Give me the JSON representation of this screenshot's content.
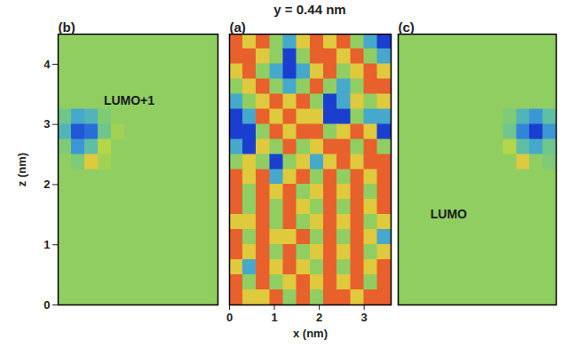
{
  "title": "y = 0.44 nm",
  "chart_data": [
    {
      "type": "heatmap",
      "label": "(b)",
      "ylabel": "z (nm)",
      "tick_labels": "y",
      "xlim": [
        0,
        3.6
      ],
      "ylim": [
        0,
        4.5
      ],
      "yticks": [
        0,
        1,
        2,
        3,
        4
      ],
      "value_range": [
        0,
        1
      ],
      "x_edges": [
        0,
        0.3,
        0.6,
        0.9,
        1.2,
        1.5,
        1.8,
        2.1,
        2.4,
        2.7,
        3.0,
        3.3,
        3.6
      ],
      "z_edges": [
        4.5,
        4.25,
        4,
        3.75,
        3.5,
        3.25,
        3,
        2.75,
        2.5,
        2.25,
        2,
        1.75,
        1.5,
        1.25,
        1,
        0.75,
        0.5,
        0.25,
        0
      ],
      "cells": [
        [
          0.5,
          0.5,
          0.5,
          0.5,
          0.5,
          0.5,
          0.5,
          0.5,
          0.5,
          0.5,
          0.5,
          0.5
        ],
        [
          0.5,
          0.5,
          0.5,
          0.5,
          0.5,
          0.5,
          0.5,
          0.5,
          0.5,
          0.5,
          0.5,
          0.5
        ],
        [
          0.5,
          0.5,
          0.5,
          0.5,
          0.5,
          0.5,
          0.5,
          0.5,
          0.5,
          0.5,
          0.5,
          0.5
        ],
        [
          0.5,
          0.5,
          0.5,
          0.5,
          0.5,
          0.5,
          0.5,
          0.5,
          0.5,
          0.5,
          0.5,
          0.5
        ],
        [
          0.5,
          0.5,
          0.5,
          0.5,
          0.5,
          0.5,
          0.5,
          0.5,
          0.5,
          0.5,
          0.5,
          0.5
        ],
        [
          0.4,
          0.25,
          0.3,
          0.45,
          0.5,
          0.5,
          0.5,
          0.5,
          0.5,
          0.5,
          0.5,
          0.5
        ],
        [
          0.3,
          0.05,
          0.1,
          0.4,
          0.55,
          0.5,
          0.5,
          0.5,
          0.5,
          0.5,
          0.5,
          0.5
        ],
        [
          0.45,
          0.2,
          0.35,
          0.6,
          0.5,
          0.5,
          0.5,
          0.5,
          0.5,
          0.5,
          0.5,
          0.5
        ],
        [
          0.5,
          0.45,
          0.75,
          0.55,
          0.5,
          0.5,
          0.5,
          0.5,
          0.5,
          0.5,
          0.5,
          0.5
        ],
        [
          0.5,
          0.5,
          0.5,
          0.5,
          0.5,
          0.5,
          0.5,
          0.5,
          0.5,
          0.5,
          0.5,
          0.5
        ],
        [
          0.5,
          0.5,
          0.5,
          0.5,
          0.5,
          0.5,
          0.5,
          0.5,
          0.5,
          0.5,
          0.5,
          0.5
        ],
        [
          0.5,
          0.5,
          0.5,
          0.5,
          0.5,
          0.5,
          0.5,
          0.5,
          0.5,
          0.5,
          0.5,
          0.5
        ],
        [
          0.5,
          0.5,
          0.5,
          0.5,
          0.5,
          0.5,
          0.5,
          0.5,
          0.5,
          0.5,
          0.5,
          0.5
        ],
        [
          0.5,
          0.5,
          0.5,
          0.5,
          0.5,
          0.5,
          0.5,
          0.5,
          0.5,
          0.5,
          0.5,
          0.5
        ],
        [
          0.5,
          0.5,
          0.5,
          0.5,
          0.5,
          0.5,
          0.5,
          0.5,
          0.5,
          0.5,
          0.5,
          0.5
        ],
        [
          0.5,
          0.5,
          0.5,
          0.5,
          0.5,
          0.5,
          0.5,
          0.5,
          0.5,
          0.5,
          0.5,
          0.5
        ],
        [
          0.5,
          0.5,
          0.5,
          0.5,
          0.5,
          0.5,
          0.5,
          0.5,
          0.5,
          0.5,
          0.5,
          0.5
        ],
        [
          0.5,
          0.5,
          0.5,
          0.5,
          0.5,
          0.5,
          0.5,
          0.5,
          0.5,
          0.5,
          0.5,
          0.5
        ]
      ],
      "annotations": [
        {
          "text": "LUMO+1",
          "x": 1.6,
          "z": 3.4
        }
      ]
    },
    {
      "type": "heatmap",
      "label": "(a)",
      "xlabel": "x (nm)",
      "tick_labels": "x",
      "xlim": [
        0,
        3.6
      ],
      "ylim": [
        0,
        4.5
      ],
      "xticks": [
        0,
        1,
        2,
        3
      ],
      "value_range": [
        0,
        1
      ],
      "x_edges": [
        0,
        0.3,
        0.6,
        0.9,
        1.2,
        1.5,
        1.8,
        2.1,
        2.4,
        2.7,
        3.0,
        3.3,
        3.6
      ],
      "z_edges": [
        4.5,
        4.25,
        4,
        3.75,
        3.5,
        3.25,
        3,
        2.75,
        2.5,
        2.25,
        2,
        1.75,
        1.5,
        1.25,
        1,
        0.75,
        0.5,
        0.25,
        0
      ],
      "cells": [
        [
          1,
          0.75,
          1,
          0.5,
          0.25,
          0.75,
          1,
          0.75,
          1,
          0.5,
          0.25,
          0
        ],
        [
          1,
          1,
          0.75,
          0.5,
          0,
          0.5,
          1,
          1,
          0.75,
          1,
          0.5,
          0.25
        ],
        [
          0.75,
          1,
          0.5,
          0.25,
          0,
          0.25,
          0.75,
          1,
          0.5,
          0.75,
          1,
          0.75
        ],
        [
          0.5,
          0.75,
          1,
          0.5,
          0.25,
          0.5,
          1,
          0.5,
          0.25,
          0.5,
          1,
          1
        ],
        [
          0.25,
          0.5,
          0.75,
          1,
          0.75,
          1,
          0.5,
          0,
          0.25,
          0.75,
          0.5,
          0.75
        ],
        [
          0,
          0.25,
          1,
          0.75,
          1,
          0.75,
          0.75,
          0,
          0,
          0.5,
          0.25,
          0.25
        ],
        [
          0,
          0,
          0.5,
          1,
          0.75,
          1,
          1,
          0.5,
          0.75,
          1,
          0.75,
          0
        ],
        [
          0.25,
          0,
          0.75,
          0.5,
          1,
          0.5,
          0.75,
          1,
          1,
          0.5,
          1,
          0.5
        ],
        [
          0.5,
          0.75,
          0.5,
          0,
          0.5,
          0.75,
          0.25,
          0.75,
          1,
          0.75,
          1,
          1
        ],
        [
          1,
          0.75,
          1,
          0.25,
          0.75,
          1,
          0.5,
          1,
          0.5,
          1,
          0.75,
          1
        ],
        [
          1,
          0.5,
          1,
          0.75,
          1,
          0.5,
          0.75,
          1,
          0.75,
          1,
          0.5,
          1
        ],
        [
          1,
          0.5,
          1,
          0.5,
          1,
          0.75,
          0.5,
          1,
          0.5,
          1,
          0.75,
          1
        ],
        [
          0.75,
          0.75,
          1,
          0.5,
          1,
          0.5,
          0.75,
          1,
          0.75,
          1,
          0.5,
          0.75
        ],
        [
          1,
          0.5,
          1,
          0.75,
          0.75,
          1,
          0.5,
          1,
          0.5,
          1,
          0.75,
          0.25
        ],
        [
          1,
          0.75,
          1,
          0.5,
          1,
          0.5,
          0.75,
          1,
          0.75,
          1,
          0.5,
          0.75
        ],
        [
          0.75,
          0.25,
          1,
          0.75,
          1,
          0.75,
          0.5,
          1,
          0.5,
          1,
          0.75,
          1
        ],
        [
          1,
          0.5,
          1,
          0.5,
          0.75,
          1,
          0.75,
          1,
          0.75,
          1,
          0.5,
          1
        ],
        [
          1,
          0.75,
          0.75,
          1,
          0.5,
          1,
          0.5,
          1,
          1,
          0.75,
          1,
          1
        ]
      ]
    },
    {
      "type": "heatmap",
      "label": "(c)",
      "tick_labels": false,
      "xlim": [
        0,
        3.6
      ],
      "ylim": [
        0,
        4.5
      ],
      "value_range": [
        0,
        1
      ],
      "x_edges": [
        0,
        0.3,
        0.6,
        0.9,
        1.2,
        1.5,
        1.8,
        2.1,
        2.4,
        2.7,
        3.0,
        3.3,
        3.6
      ],
      "z_edges": [
        4.5,
        4.25,
        4,
        3.75,
        3.5,
        3.25,
        3,
        2.75,
        2.5,
        2.25,
        2,
        1.75,
        1.5,
        1.25,
        1,
        0.75,
        0.5,
        0.25,
        0
      ],
      "cells": [
        [
          0.5,
          0.5,
          0.5,
          0.5,
          0.5,
          0.5,
          0.5,
          0.5,
          0.5,
          0.5,
          0.5,
          0.5
        ],
        [
          0.5,
          0.5,
          0.5,
          0.5,
          0.5,
          0.5,
          0.5,
          0.5,
          0.5,
          0.5,
          0.5,
          0.5
        ],
        [
          0.5,
          0.5,
          0.5,
          0.5,
          0.5,
          0.5,
          0.5,
          0.5,
          0.5,
          0.5,
          0.5,
          0.5
        ],
        [
          0.5,
          0.5,
          0.5,
          0.5,
          0.5,
          0.5,
          0.5,
          0.5,
          0.5,
          0.5,
          0.5,
          0.5
        ],
        [
          0.5,
          0.5,
          0.5,
          0.5,
          0.5,
          0.5,
          0.5,
          0.5,
          0.5,
          0.5,
          0.5,
          0.5
        ],
        [
          0.5,
          0.5,
          0.5,
          0.5,
          0.5,
          0.5,
          0.5,
          0.5,
          0.45,
          0.3,
          0.2,
          0.35
        ],
        [
          0.5,
          0.5,
          0.5,
          0.5,
          0.5,
          0.5,
          0.5,
          0.5,
          0.4,
          0.15,
          0.0,
          0.2
        ],
        [
          0.5,
          0.5,
          0.5,
          0.5,
          0.5,
          0.5,
          0.5,
          0.5,
          0.6,
          0.35,
          0.25,
          0.4
        ],
        [
          0.5,
          0.5,
          0.5,
          0.5,
          0.5,
          0.5,
          0.5,
          0.5,
          0.5,
          0.75,
          0.5,
          0.45
        ],
        [
          0.5,
          0.5,
          0.5,
          0.5,
          0.5,
          0.5,
          0.5,
          0.5,
          0.5,
          0.5,
          0.5,
          0.5
        ],
        [
          0.5,
          0.5,
          0.5,
          0.5,
          0.5,
          0.5,
          0.5,
          0.5,
          0.5,
          0.5,
          0.5,
          0.5
        ],
        [
          0.5,
          0.5,
          0.5,
          0.5,
          0.5,
          0.5,
          0.5,
          0.5,
          0.5,
          0.5,
          0.5,
          0.5
        ],
        [
          0.5,
          0.5,
          0.5,
          0.5,
          0.5,
          0.5,
          0.5,
          0.5,
          0.5,
          0.5,
          0.5,
          0.5
        ],
        [
          0.5,
          0.5,
          0.5,
          0.5,
          0.5,
          0.5,
          0.5,
          0.5,
          0.5,
          0.5,
          0.5,
          0.5
        ],
        [
          0.5,
          0.5,
          0.5,
          0.5,
          0.5,
          0.5,
          0.5,
          0.5,
          0.5,
          0.5,
          0.5,
          0.5
        ],
        [
          0.5,
          0.5,
          0.5,
          0.5,
          0.5,
          0.5,
          0.5,
          0.5,
          0.5,
          0.5,
          0.5,
          0.5
        ],
        [
          0.5,
          0.5,
          0.5,
          0.5,
          0.5,
          0.5,
          0.5,
          0.5,
          0.5,
          0.5,
          0.5,
          0.5
        ],
        [
          0.5,
          0.5,
          0.5,
          0.5,
          0.5,
          0.5,
          0.5,
          0.5,
          0.5,
          0.5,
          0.5,
          0.5
        ]
      ],
      "annotations": [
        {
          "text": "LUMO",
          "x": 1.15,
          "z": 1.5
        }
      ]
    }
  ]
}
